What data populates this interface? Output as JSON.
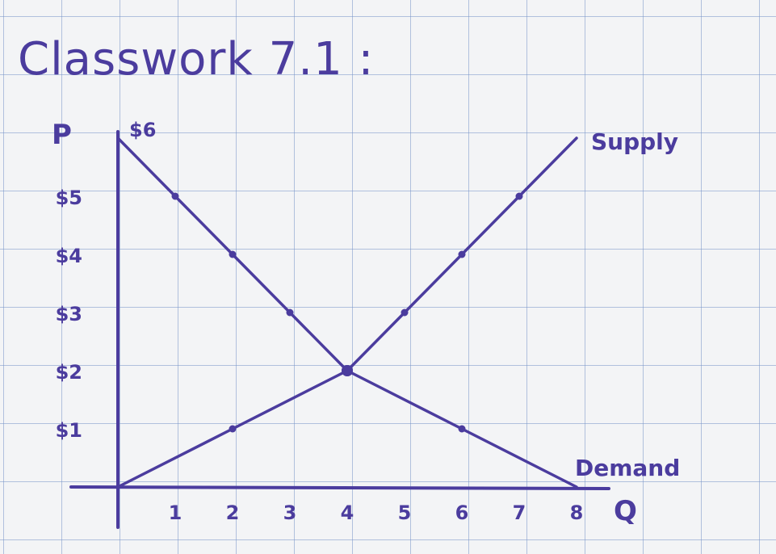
{
  "chart_data": {
    "type": "line",
    "title": "Classwork 7.1 :",
    "xlabel": "Q",
    "ylabel": "P",
    "xlim": [
      0,
      8
    ],
    "ylim": [
      0,
      6
    ],
    "x_ticks": [
      "1",
      "2",
      "3",
      "4",
      "5",
      "6",
      "7",
      "8"
    ],
    "y_ticks": [
      "$1",
      "$2",
      "$3",
      "$4",
      "$5",
      "$6"
    ],
    "grid": true,
    "series": [
      {
        "name": "Supply",
        "x": [
          0,
          2,
          4,
          5,
          6,
          7,
          8
        ],
        "y": [
          0,
          1,
          2,
          3,
          4,
          5,
          6
        ],
        "marked": [
          false,
          true,
          true,
          true,
          true,
          true,
          false
        ]
      },
      {
        "name": "Demand",
        "x": [
          0,
          1,
          2,
          3,
          4,
          6,
          8
        ],
        "y": [
          6,
          5,
          4,
          3,
          2,
          1,
          0
        ],
        "marked": [
          false,
          true,
          true,
          true,
          true,
          true,
          false
        ]
      }
    ],
    "ink_color": "#4b3c9e"
  }
}
